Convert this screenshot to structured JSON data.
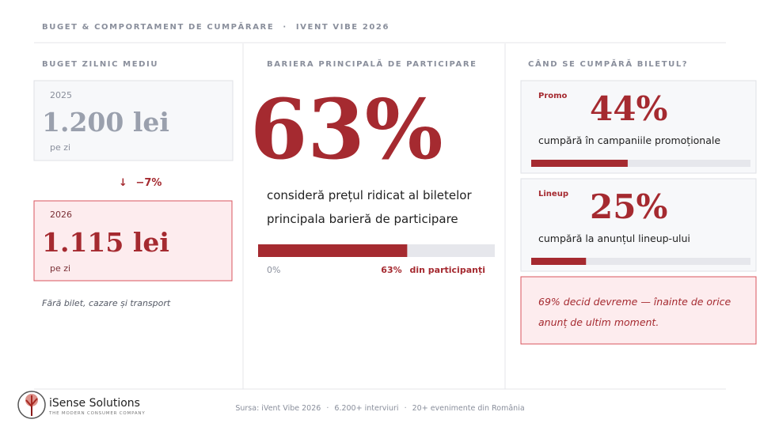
{
  "header": {
    "title": "BUGET & COMPORTAMENT DE CUMPĂRARE",
    "separator": "·",
    "subtitle": "IVENT VIBE 2026"
  },
  "budget": {
    "label": "BUGET ZILNIC MEDIU",
    "previous": {
      "year": "2025",
      "amount": "1.200 lei",
      "unit": "pe zi"
    },
    "change_arrow": "↓",
    "change": "−7%",
    "current": {
      "year": "2026",
      "amount": "1.115 lei",
      "unit": "pe zi"
    },
    "note": "Fără bilet, cazare și transport"
  },
  "barrier": {
    "label": "BARIERA PRINCIPALĂ DE PARTICIPARE",
    "percent": 63,
    "percent_label": "63%",
    "text_line_1": "consideră prețul ridicat al biletelor",
    "text_line_2": "principala barieră de participare",
    "bar_start_label": "0%",
    "bar_end_suffix": "din participanți"
  },
  "purchase": {
    "label": "CÂND SE CUMPĂRĂ BILETUL?",
    "cards": [
      {
        "tag": "Promo",
        "percent": 44,
        "percent_label": "44%",
        "text": "cumpără în campaniile promoționale"
      },
      {
        "tag": "Lineup",
        "percent": 25,
        "percent_label": "25%",
        "text": "cumpără la anunțul lineup-ului"
      }
    ],
    "note_line_1": "69% decid devreme — înainte de orice",
    "note_line_2": "anunț de ultim moment."
  },
  "footer": {
    "brand": "iSense Solutions",
    "tagline": "THE MODERN CONSUMER COMPANY",
    "source": "Sursa: iVent Vibe 2026",
    "sep1": "·",
    "interviews": "6.200+ interviuri",
    "sep2": "·",
    "events": "20+ evenimente din România"
  }
}
